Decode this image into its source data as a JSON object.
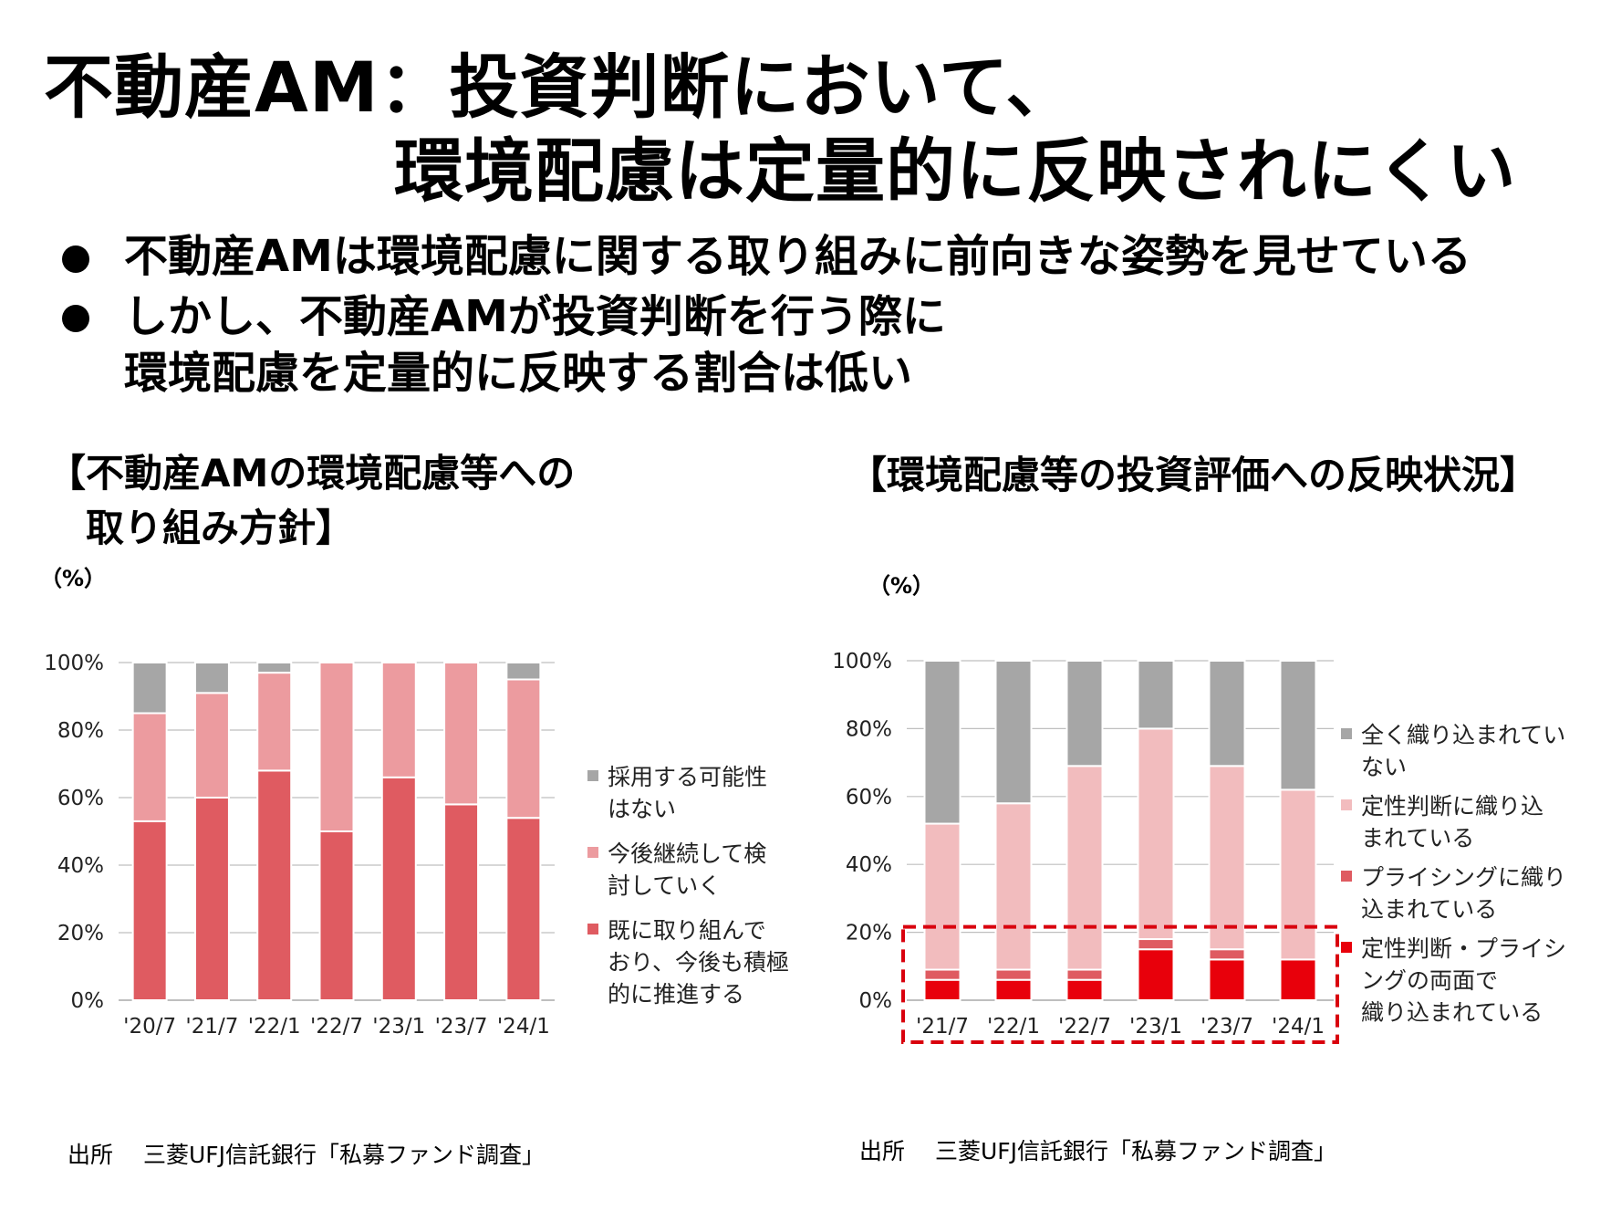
{
  "title": {
    "line1": "不動産AM：投資判断において、",
    "line2": "環境配慮は定量的に反映されにくい"
  },
  "bullets": [
    {
      "lines": [
        "不動産AMは環境配慮に関する取り組みに前向きな姿勢を見せている"
      ]
    },
    {
      "lines": [
        "しかし、不動産AMが投資判断を行う際に",
        "環境配慮を定量的に反映する割合は低い"
      ]
    }
  ],
  "left_chart": {
    "heading_lines": [
      "【不動産AMの環境配慮等への",
      "　取り組み方針】"
    ],
    "unit": "（%）",
    "source": "出所　 三菱UFJ信託銀行「私募ファンド調査」"
  },
  "right_chart": {
    "heading_lines": [
      "【環境配慮等の投資評価への反映状況】"
    ],
    "unit": "（%）",
    "source": "出所　 三菱UFJ信託銀行「私募ファンド調査」"
  },
  "colors": {
    "left_adopted": "#df5b61",
    "left_considering": "#ec9b9f",
    "left_no": "#a6a6a6",
    "right_both": "#e8000b",
    "right_pricing": "#df5b61",
    "right_qualitative": "#f2bcbe",
    "right_none": "#a6a6a6",
    "highlight_box": "#d9000d",
    "axis": "#bfbfbf"
  },
  "chart_data": [
    {
      "type": "bar",
      "stacked": true,
      "categories": [
        "'20/7",
        "'21/7",
        "'22/1",
        "'22/7",
        "'23/1",
        "'23/7",
        "'24/1"
      ],
      "series": [
        {
          "name": "既に取り組んでおり、今後も積極的に推進する",
          "values": [
            53,
            60,
            68,
            50,
            66,
            58,
            54
          ]
        },
        {
          "name": "今後継続して検討していく",
          "values": [
            32,
            31,
            29,
            50,
            34,
            42,
            41
          ]
        },
        {
          "name": "採用する可能性はない",
          "values": [
            15,
            9,
            3,
            0,
            0,
            0,
            5
          ]
        }
      ],
      "legend_labels": [
        [
          "採用する可能性",
          "はない"
        ],
        [
          "今後継続して検",
          "討していく"
        ],
        [
          "既に取り組んで",
          "おり、今後も積極",
          "的に推進する"
        ]
      ],
      "y_ticks": [
        "0%",
        "20%",
        "40%",
        "60%",
        "80%",
        "100%"
      ],
      "ylim": [
        0,
        100
      ],
      "legend_position": "right",
      "grid": true
    },
    {
      "type": "bar",
      "stacked": true,
      "categories": [
        "'21/7",
        "'22/1",
        "'22/7",
        "'23/1",
        "'23/7",
        "'24/1"
      ],
      "series": [
        {
          "name": "定性判断・プライシングの両面で織り込まれている",
          "values": [
            6,
            6,
            6,
            15,
            12,
            12
          ]
        },
        {
          "name": "プライシングに織り込まれている",
          "values": [
            3,
            3,
            3,
            3,
            3,
            0
          ]
        },
        {
          "name": "定性判断に織り込まれている",
          "values": [
            43,
            49,
            60,
            62,
            54,
            50
          ]
        },
        {
          "name": "全く織り込まれていない",
          "values": [
            48,
            42,
            31,
            20,
            31,
            38
          ]
        }
      ],
      "legend_labels": [
        [
          "全く織り込まれてい",
          "ない"
        ],
        [
          "定性判断に織り込",
          "まれている"
        ],
        [
          "プライシングに織り",
          "込まれている"
        ],
        [
          "定性判断・プライシ",
          "ングの両面で",
          "織り込まれている"
        ]
      ],
      "y_ticks": [
        "0%",
        "20%",
        "40%",
        "60%",
        "80%",
        "100%"
      ],
      "ylim": [
        0,
        100
      ],
      "legend_position": "right",
      "grid": true,
      "highlight_range": [
        0,
        20
      ]
    }
  ]
}
